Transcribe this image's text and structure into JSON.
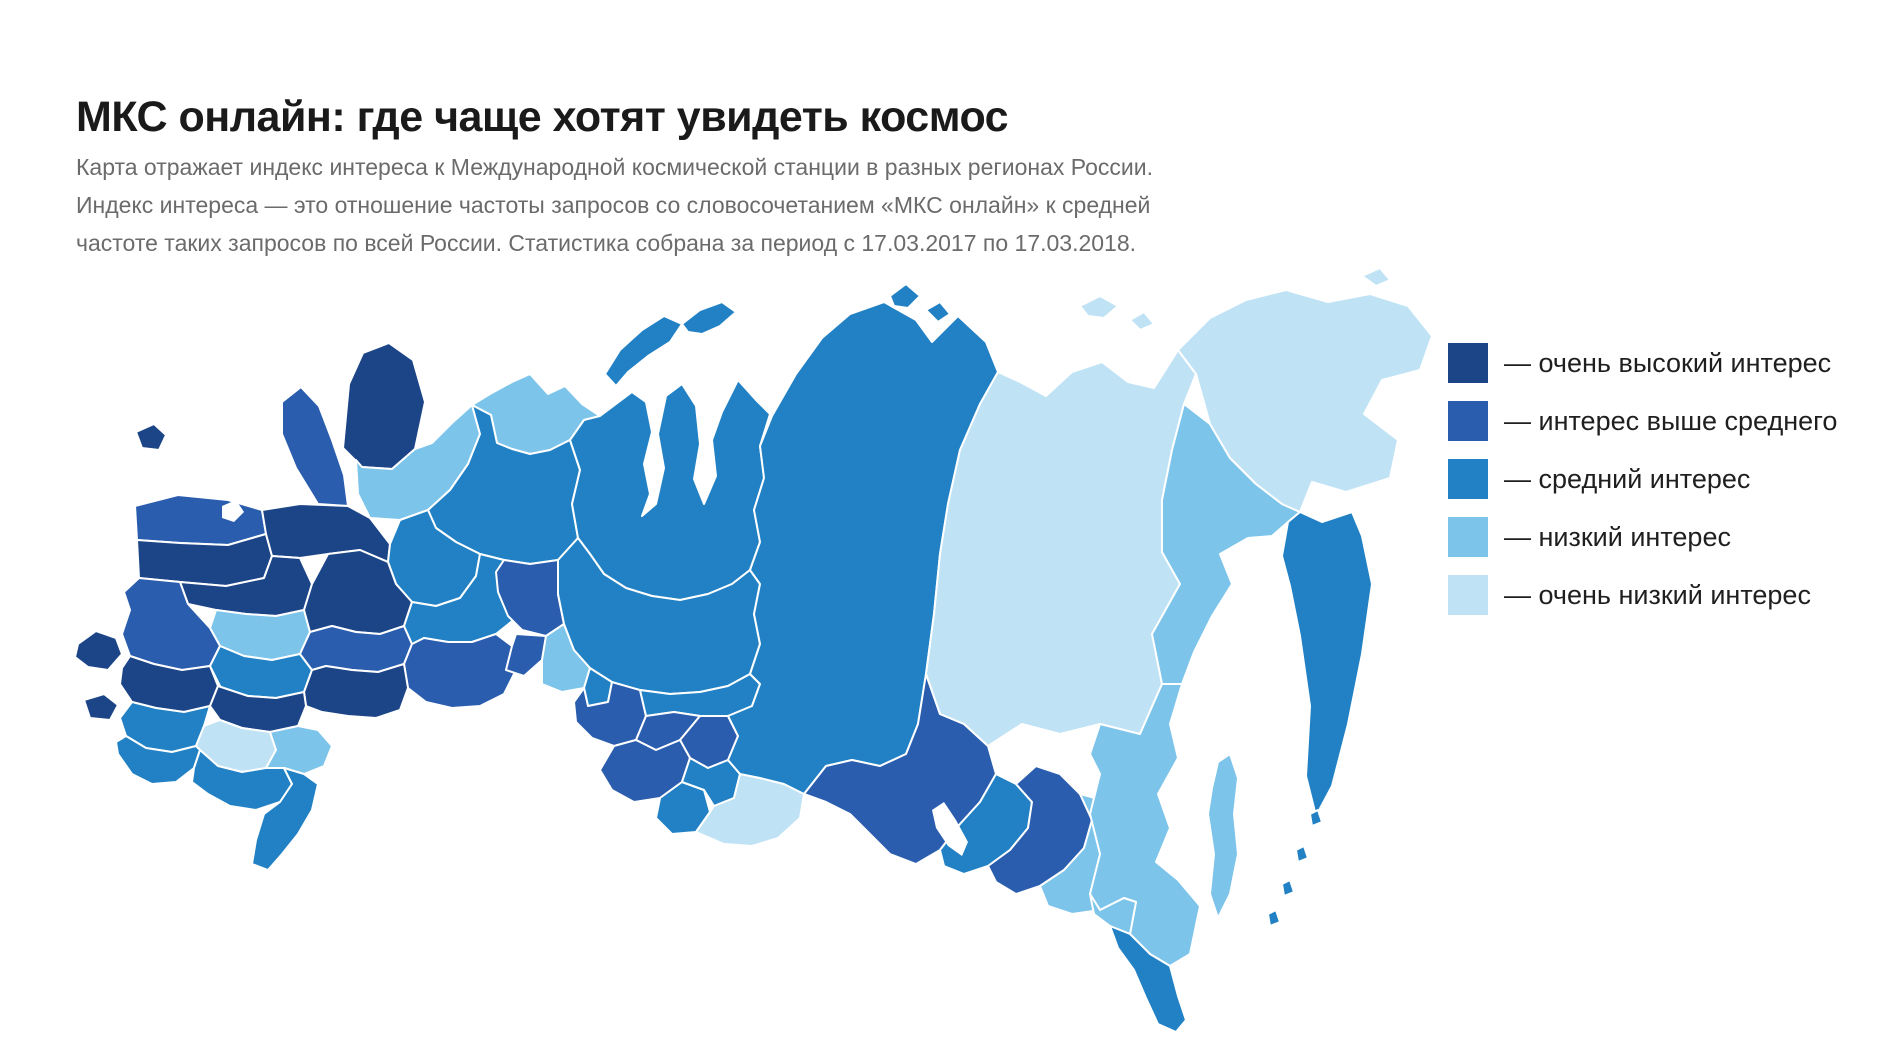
{
  "header": {
    "title": "МКС онлайн: где чаще хотят увидеть космос",
    "subtitle_lines": [
      "Карта отражает индекс интереса к Международной космической станции в разных регионах России.",
      "Индекс интереса — это отношение частоты запросов со словосочетанием «МКС онлайн» к средней",
      "частоте таких запросов по всей России. Статистика собрана за период с 17.03.2017 по 17.03.2018."
    ]
  },
  "legend": {
    "items": [
      {
        "label": "— очень высокий интерес",
        "color": "#1c4587",
        "level": "very_high"
      },
      {
        "label": "— интерес выше среднего",
        "color": "#2a5dae",
        "level": "above_average"
      },
      {
        "label": "— средний интерес",
        "color": "#2181c4",
        "level": "medium"
      },
      {
        "label": "— низкий интерес",
        "color": "#7cc4ea",
        "level": "low"
      },
      {
        "label": "— очень низкий интерес",
        "color": "#bfe2f5",
        "level": "very_low"
      }
    ]
  },
  "map": {
    "background": "#ffffff",
    "border": "#ffffff",
    "palette": {
      "vh": "#1c4587",
      "ab": "#2a5dae",
      "md": "#2181c4",
      "lo": "#7cc4ea",
      "vl": "#bfe2f5"
    },
    "regions": [
      {
        "n": "murmansk",
        "l": "vh",
        "p": "283,194 289,130 303,99 329,89 353,106 365,148 355,195 332,215 302,213"
      },
      {
        "n": "west-exclave",
        "l": "vh",
        "p": "76,178 94,170 106,181 99,196 82,194"
      },
      {
        "n": "karelia",
        "l": "ab",
        "p": "222,148 241,133 259,152 272,186 284,221 288,252 258,250 236,214 222,180"
      },
      {
        "n": "arkhangelsk",
        "l": "lo",
        "p": "296,206 302,213 332,215 355,195 372,189 392,169 412,151 420,180 408,210 390,236 368,256 340,266 310,264 298,240"
      },
      {
        "n": "nenets",
        "l": "lo",
        "p": "412,151 431,161 437,189 452,195 470,200 490,196 510,186 524,166 540,162 522,150 505,132 488,140 470,120 452,128 430,140"
      },
      {
        "n": "komi",
        "l": "md",
        "p": "368,256 390,236 408,210 420,180 412,151 431,161 437,189 452,195 470,200 490,196 510,186 520,216 512,250 518,284 498,306 470,310 444,306 420,300 396,288 376,274"
      },
      {
        "n": "leningrad",
        "l": "ab",
        "p": "75,252 118,241 168,246 202,256 206,280 168,291 120,289 77,286"
      },
      {
        "n": "pskov-novgorod",
        "l": "vh",
        "p": "77,286 120,289 168,291 206,280 212,302 204,324 166,332 120,328 79,324"
      },
      {
        "n": "vologda",
        "l": "vh",
        "p": "202,256 240,250 288,252 310,264 330,290 328,308 300,296 268,300 240,304 212,302 206,280"
      },
      {
        "n": "kirov",
        "l": "md",
        "p": "330,290 340,266 368,256 376,274 396,288 420,300 416,322 400,344 376,352 352,348 336,330 328,308"
      },
      {
        "n": "tver-yaroslavl",
        "l": "vh",
        "p": "120,328 166,332 204,324 212,302 240,304 252,330 244,356 216,362 186,360 156,356 128,350"
      },
      {
        "n": "moscow",
        "l": "lo",
        "p": "156,356 186,360 216,362 244,356 250,378 240,400 212,406 184,402 160,392 150,374"
      },
      {
        "n": "vladimir-nizhny",
        "l": "vh",
        "p": "252,330 268,300 300,296 328,308 336,330 352,348 344,372 320,380 296,378 272,372 250,378 244,356"
      },
      {
        "n": "smolensk-kaluga",
        "l": "ab",
        "p": "79,324 120,328 128,350 150,374 160,392 150,412 122,416 94,410 70,402 62,380 70,356 64,338"
      },
      {
        "n": "bryansk-kursk",
        "l": "vh",
        "p": "70,402 94,410 122,416 150,412 158,432 150,452 124,458 96,454 72,448 60,430 62,414"
      },
      {
        "n": "tula-ryazan",
        "l": "md",
        "p": "160,392 184,402 212,406 240,400 252,416 244,438 216,444 188,442 162,436 150,412"
      },
      {
        "n": "penza-mordovia",
        "l": "ab",
        "p": "250,378 272,372 296,378 320,380 344,372 352,390 344,410 318,418 292,416 266,412 252,416 240,400"
      },
      {
        "n": "tatarstan-samara",
        "l": "md",
        "p": "352,348 376,352 400,344 416,322 420,300 444,306 470,310 466,338 456,364 436,380 412,388 388,388 364,384 352,390 344,372"
      },
      {
        "n": "bashkortostan-orenburg",
        "l": "ab",
        "p": "344,410 352,390 364,384 388,388 412,388 436,380 452,392 456,416 444,440 420,452 392,454 366,448 348,434"
      },
      {
        "n": "saratov-volgograd",
        "l": "vh",
        "p": "244,438 252,416 266,412 292,416 318,418 344,410 348,434 340,456 316,464 288,462 262,458 246,452"
      },
      {
        "n": "voronezh-belgorod",
        "l": "vh",
        "p": "158,432 188,442 216,444 244,438 246,452 238,472 210,478 182,474 160,466 150,452"
      },
      {
        "n": "rostov",
        "l": "md",
        "p": "72,448 96,454 124,458 150,452 144,472 136,492 112,498 86,494 66,482 60,464"
      },
      {
        "n": "kalmykia",
        "l": "vl",
        "p": "144,472 160,466 182,474 210,478 216,496 206,514 182,518 158,512 140,496 136,492"
      },
      {
        "n": "astrakhan",
        "l": "lo",
        "p": "216,496 210,478 238,472 258,476 272,492 264,512 244,520 224,514 206,514"
      },
      {
        "n": "krasnodar",
        "l": "md",
        "p": "66,482 86,494 112,498 136,492 140,496 134,514 116,528 92,530 72,520 58,500 56,488"
      },
      {
        "n": "stavropol",
        "l": "md",
        "p": "134,514 140,496 158,512 182,518 206,514 224,514 232,530 220,548 196,556 170,552 148,540 132,528"
      },
      {
        "n": "dagestan",
        "l": "md",
        "p": "224,514 244,520 258,530 252,556 238,580 222,600 208,616 192,610 196,586 204,560 220,548 232,530"
      },
      {
        "n": "crimea",
        "l": "vh",
        "p": "18,390 36,377 56,384 62,400 48,416 28,413 15,403"
      },
      {
        "n": "kaliningrad",
        "l": "vh",
        "p": "24,446 44,440 58,451 50,466 30,464"
      },
      {
        "n": "sverdlovsk",
        "l": "ab",
        "p": "444,306 470,310 498,306 498,340 504,370 486,382 462,376 448,362 438,338 436,318"
      },
      {
        "n": "chelyabinsk",
        "l": "ab",
        "p": "456,380 486,382 482,406 464,422 446,416 452,392"
      },
      {
        "n": "kurgan",
        "l": "lo",
        "p": "486,382 504,370 514,396 530,414 524,434 502,438 482,430 482,406"
      },
      {
        "n": "tyumen",
        "l": "md",
        "p": "530,414 552,428 548,448 528,452 524,434"
      },
      {
        "n": "omsk",
        "l": "ab",
        "p": "524,434 528,452 548,448 552,428 580,436 586,462 576,486 554,492 532,484 516,468 514,448"
      },
      {
        "n": "yamal",
        "l": "md",
        "p": "524,166 540,162 556,150 572,138 586,148 592,178 584,210 590,240 582,262 596,250 604,214 598,180 606,142 622,130 636,152 640,190 634,225 644,250 656,222 652,186 662,158 678,126 696,146 710,160 700,192 704,224 694,256 700,288 690,316 672,330 648,340 620,346 592,342 566,334 544,320 530,300 518,284 512,250 520,216 510,186"
      },
      {
        "n": "khanty",
        "l": "md",
        "p": "530,300 544,320 566,334 592,342 620,346 648,340 672,330 690,316 700,330 694,360 700,390 690,420 668,432 640,438 610,440 580,436 552,428 530,414 514,396 504,370 498,340 498,306 518,284"
      },
      {
        "n": "tomsk",
        "l": "md",
        "p": "580,436 610,440 640,438 668,432 690,420 700,430 692,452 668,462 640,462 614,458 586,462"
      },
      {
        "n": "novosibirsk",
        "l": "ab",
        "p": "586,462 614,458 640,462 620,486 596,496 576,486"
      },
      {
        "n": "kemerovo",
        "l": "ab",
        "p": "640,462 668,462 678,482 668,506 648,514 630,504 620,486"
      },
      {
        "n": "altai-krai",
        "l": "ab",
        "p": "576,486 596,496 620,486 630,504 622,528 600,544 574,548 552,536 540,516 554,492"
      },
      {
        "n": "altai-rep",
        "l": "md",
        "p": "600,544 622,528 644,536 650,558 636,578 612,580 596,564"
      },
      {
        "n": "khakassia",
        "l": "md",
        "p": "630,504 648,514 668,506 680,520 674,544 654,552 644,536 622,528"
      },
      {
        "n": "tyva",
        "l": "vl",
        "p": "636,578 650,558 654,552 674,544 680,520 700,524 724,530 744,540 740,564 718,584 692,592 664,590"
      },
      {
        "n": "krasnoyarsk",
        "l": "md",
        "p": "712,162 736,120 762,84 790,60 824,48 856,66 872,88 898,62 926,88 938,118 920,150 900,196 888,250 880,300 874,360 866,420 858,470 846,500 820,512 792,506 766,512 744,540 724,530 700,524 680,520 668,506 678,482 668,462 692,452 700,430 690,420 700,390 694,360 700,330 690,316 700,288 694,256 704,224 700,192"
      },
      {
        "n": "irkutsk",
        "l": "ab",
        "p": "866,420 880,460 904,470 928,492 936,520 920,548 900,570 880,596 856,610 830,600 810,580 790,560 766,548 744,540 766,512 792,506 820,512 846,500 858,470"
      },
      {
        "n": "buryatia",
        "l": "md",
        "p": "880,596 900,570 920,548 936,520 956,530 972,548 968,574 950,596 928,612 904,620 884,612"
      },
      {
        "n": "zabaikalsky",
        "l": "ab",
        "p": "956,530 976,512 1000,520 1020,540 1032,566 1024,594 1004,616 980,632 956,640 936,628 928,612 950,596 968,574 972,548"
      },
      {
        "n": "amur",
        "l": "lo",
        "p": "1020,540 1032,566 1024,594 1004,616 980,632 988,652 1012,660 1040,656 1064,644 1076,648 1080,624 1076,600 1086,580 1072,560 1050,548"
      },
      {
        "n": "yakutia",
        "l": "vl",
        "p": "938,118 960,128 986,142 1012,118 1042,108 1068,128 1094,134 1118,96 1136,120 1124,150 1112,196 1102,246 1102,298 1120,330 1092,380 1102,430 1080,480 1040,470 1000,480 962,470 928,492 904,470 880,460 866,420 874,360 880,300 888,250 900,196 920,150"
      },
      {
        "n": "magadan",
        "l": "lo",
        "p": "1124,150 1150,170 1170,204 1196,230 1222,250 1240,258 1228,268 1212,282 1188,284 1160,300 1172,330 1152,362 1134,398 1122,430 1102,430 1092,380 1120,330 1102,298 1102,246 1112,196"
      },
      {
        "n": "khabarovsk",
        "l": "lo",
        "p": "1040,470 1080,480 1102,430 1122,430 1110,470 1118,504 1098,540 1110,574 1096,608 1118,626 1140,652 1130,700 1110,712 1090,700 1070,680 1076,648 1064,644 1040,656 1030,640 1040,600 1030,560 1040,520 1030,500"
      },
      {
        "n": "jewish-ao",
        "l": "lo",
        "p": "1030,640 1040,656 1064,644 1076,648 1070,680 1050,672 1034,660"
      },
      {
        "n": "primorye",
        "l": "md",
        "p": "1050,672 1070,680 1090,700 1110,712 1118,742 1126,766 1116,778 1098,770 1086,744 1074,716 1058,694"
      },
      {
        "n": "chukotka",
        "l": "vl",
        "p": "1118,96 1150,64 1186,46 1226,36 1268,48 1310,40 1348,52 1372,82 1360,116 1322,126 1304,160 1338,186 1330,224 1286,238 1252,228 1240,258 1222,250 1196,230 1170,204 1150,170 1136,120"
      },
      {
        "n": "kamchatka",
        "l": "md",
        "p": "1240,258 1262,268 1292,258 1302,282 1312,330 1302,400 1288,470 1272,532 1256,562 1246,522 1250,452 1240,382 1230,332 1222,302 1228,268"
      },
      {
        "n": "sakhalin",
        "l": "lo",
        "p": "1158,508 1170,500 1178,524 1174,560 1178,600 1170,640 1158,664 1150,640 1154,600 1148,560 1152,534"
      },
      {
        "n": "kuril-1",
        "l": "md",
        "p": "1250,560 1258,556 1262,568 1252,572"
      },
      {
        "n": "kuril-2",
        "l": "md",
        "p": "1236,596 1244,592 1248,604 1238,608"
      },
      {
        "n": "kuril-3",
        "l": "md",
        "p": "1222,630 1230,626 1234,638 1224,642"
      },
      {
        "n": "kuril-4",
        "l": "md",
        "p": "1208,660 1216,656 1220,668 1210,672"
      },
      {
        "n": "novaya-zemlya-s",
        "l": "md",
        "p": "545,120 560,96 582,76 604,62 622,70 610,88 588,102 568,118 556,132"
      },
      {
        "n": "novaya-zemlya-n",
        "l": "md",
        "p": "622,70 640,56 662,48 676,58 660,72 642,80 628,78"
      },
      {
        "n": "severnaya-zemlya-1",
        "l": "md",
        "p": "830,42 846,30 860,42 848,54 834,52"
      },
      {
        "n": "severnaya-zemlya-2",
        "l": "md",
        "p": "866,56 880,48 890,60 878,68"
      },
      {
        "n": "new-siberian-1",
        "l": "vl",
        "p": "1020,52 1040,42 1058,52 1044,64 1028,62"
      },
      {
        "n": "new-siberian-2",
        "l": "vl",
        "p": "1070,66 1084,58 1094,70 1080,76"
      },
      {
        "n": "wrangel",
        "l": "vl",
        "p": "1302,22 1320,14 1330,26 1316,32"
      }
    ],
    "lakes": [
      {
        "n": "ladoga",
        "p": "162,252 176,246 184,258 174,268 162,264"
      },
      {
        "n": "onega",
        "p": "206,238 218,232 226,244 214,252"
      },
      {
        "n": "baikal",
        "p": "872,556 884,548 896,566 908,588 902,602 888,592 876,574"
      }
    ]
  }
}
